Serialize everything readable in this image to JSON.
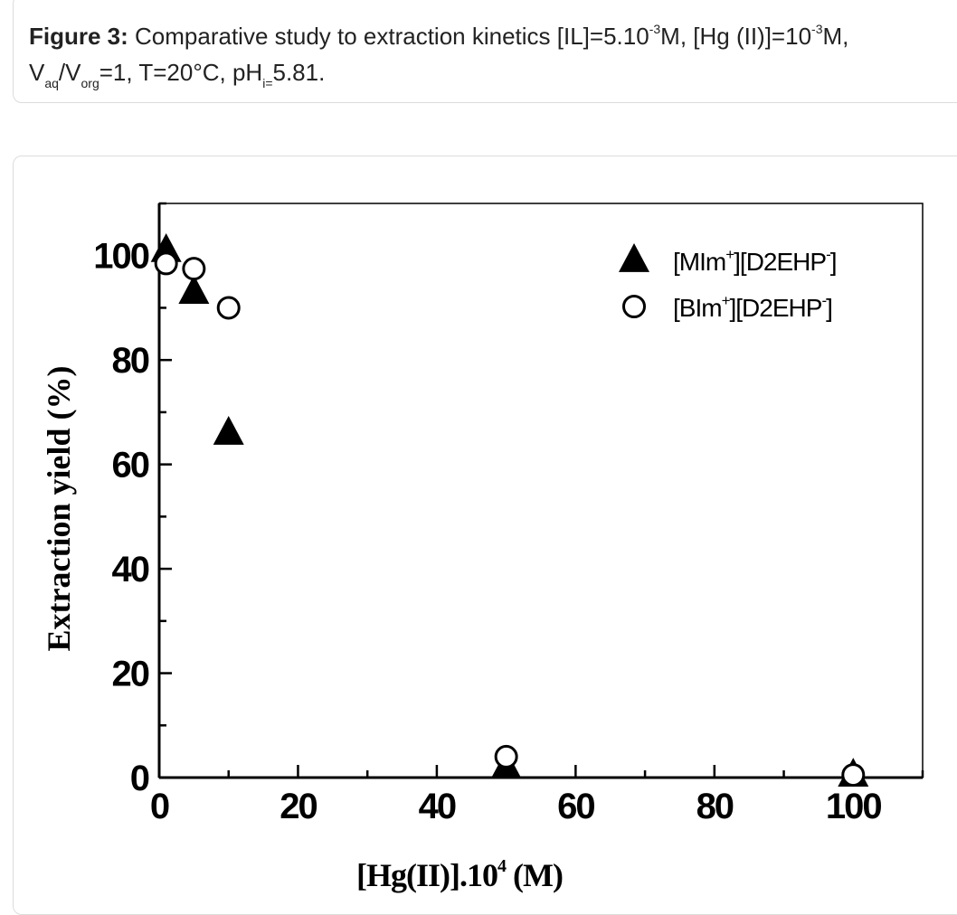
{
  "caption": {
    "label": "Figure 3:",
    "text_1": " Comparative study to extraction kinetics [IL]=5.10",
    "sup_1": "-3",
    "text_2": "M, [Hg (II)]=10",
    "sup_2": "-3",
    "text_3": "M,",
    "text_4": "V",
    "sub_1": "aq",
    "text_5": "/V",
    "sub_2": "org",
    "text_6": "=1, T=20°C, pH",
    "sub_3": "i=",
    "text_7": "5.81."
  },
  "chart_data": {
    "type": "scatter",
    "xlabel_main": "[Hg(II)].10",
    "xlabel_sup": "4",
    "xlabel_unit": " (M)",
    "ylabel": "Extraction yield (%)",
    "xlim": [
      0,
      110
    ],
    "ylim": [
      0,
      110
    ],
    "x_ticks": [
      0,
      20,
      40,
      60,
      80,
      100
    ],
    "y_ticks": [
      0,
      20,
      40,
      60,
      80,
      100
    ],
    "legend_position": "top-right",
    "series": [
      {
        "name": "[MIm+][D2EHP-]",
        "legend_main": "[MIm",
        "legend_sup1": "+",
        "legend_mid": "][D2EHP",
        "legend_sup2": "-",
        "legend_end": "]",
        "marker": "filled-triangle",
        "color": "#000000",
        "x": [
          1,
          5,
          10,
          50,
          100
        ],
        "y": [
          101,
          93,
          66,
          2,
          0.5
        ]
      },
      {
        "name": "[BIm+][D2EHP-]",
        "legend_main": "[BIm",
        "legend_sup1": "+",
        "legend_mid": "][D2EHP",
        "legend_sup2": "-",
        "legend_end": "]",
        "marker": "open-circle",
        "color": "#000000",
        "x": [
          1,
          5,
          10,
          50,
          100
        ],
        "y": [
          98.5,
          97.5,
          90,
          4,
          0.5
        ]
      }
    ]
  }
}
